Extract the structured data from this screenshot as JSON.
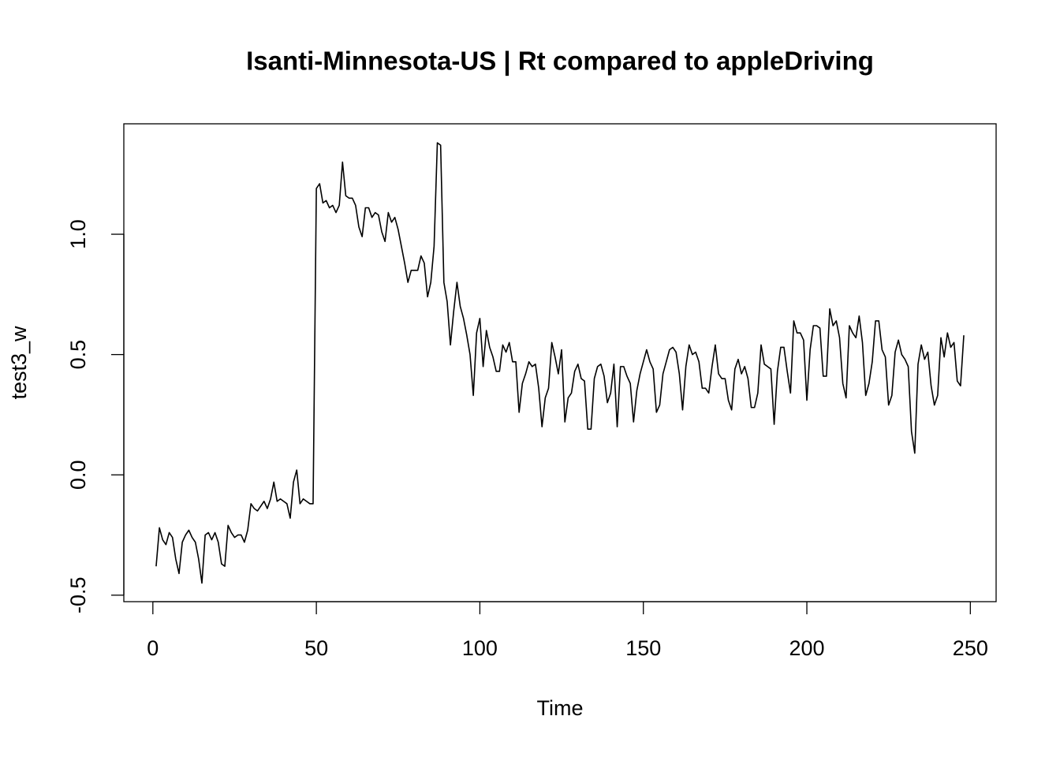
{
  "chart_data": {
    "type": "line",
    "title": "Isanti-Minnesota-US | Rt compared to appleDriving",
    "x_label": "Time",
    "y_label": "test3_w",
    "color": "#000000",
    "grid": false,
    "xlim": [
      -8.88,
      257.88
    ],
    "ylim": [
      -0.527,
      1.459
    ],
    "xticks": [
      0,
      50,
      100,
      150,
      200,
      250
    ],
    "yticks": [
      -0.5,
      {
        "value": 0,
        "label": "0.0"
      },
      0.5,
      {
        "value": 1,
        "label": "1.0"
      }
    ],
    "x": [
      1,
      2,
      3,
      4,
      5,
      6,
      7,
      8,
      9,
      10,
      11,
      12,
      13,
      14,
      15,
      16,
      17,
      18,
      19,
      20,
      21,
      22,
      23,
      24,
      25,
      26,
      27,
      28,
      29,
      30,
      31,
      32,
      33,
      34,
      35,
      36,
      37,
      38,
      39,
      40,
      41,
      42,
      43,
      44,
      45,
      46,
      47,
      48,
      49,
      50,
      51,
      52,
      53,
      54,
      55,
      56,
      57,
      58,
      59,
      60,
      61,
      62,
      63,
      64,
      65,
      66,
      67,
      68,
      69,
      70,
      71,
      72,
      73,
      74,
      75,
      76,
      77,
      78,
      79,
      80,
      81,
      82,
      83,
      84,
      85,
      86,
      87,
      88,
      89,
      90,
      91,
      92,
      93,
      94,
      95,
      96,
      97,
      98,
      99,
      100,
      101,
      102,
      103,
      104,
      105,
      106,
      107,
      108,
      109,
      110,
      111,
      112,
      113,
      114,
      115,
      116,
      117,
      118,
      119,
      120,
      121,
      122,
      123,
      124,
      125,
      126,
      127,
      128,
      129,
      130,
      131,
      132,
      133,
      134,
      135,
      136,
      137,
      138,
      139,
      140,
      141,
      142,
      143,
      144,
      145,
      146,
      147,
      148,
      149,
      150,
      151,
      152,
      153,
      154,
      155,
      156,
      157,
      158,
      159,
      160,
      161,
      162,
      163,
      164,
      165,
      166,
      167,
      168,
      169,
      170,
      171,
      172,
      173,
      174,
      175,
      176,
      177,
      178,
      179,
      180,
      181,
      182,
      183,
      184,
      185,
      186,
      187,
      188,
      189,
      190,
      191,
      192,
      193,
      194,
      195,
      196,
      197,
      198,
      199,
      200,
      201,
      202,
      203,
      204,
      205,
      206,
      207,
      208,
      209,
      210,
      211,
      212,
      213,
      214,
      215,
      216,
      217,
      218,
      219,
      220,
      221,
      222,
      223,
      224,
      225,
      226,
      227,
      228,
      229,
      230,
      231,
      232,
      233,
      234,
      235,
      236,
      237,
      238,
      239,
      240,
      241,
      242,
      243,
      244,
      245,
      246,
      247,
      248
    ],
    "values": [
      -0.38,
      -0.22,
      -0.27,
      -0.29,
      -0.24,
      -0.26,
      -0.35,
      -0.41,
      -0.28,
      -0.25,
      -0.23,
      -0.26,
      -0.28,
      -0.35,
      -0.45,
      -0.25,
      -0.24,
      -0.27,
      -0.24,
      -0.28,
      -0.37,
      -0.38,
      -0.21,
      -0.24,
      -0.26,
      -0.25,
      -0.25,
      -0.28,
      -0.23,
      -0.12,
      -0.14,
      -0.15,
      -0.13,
      -0.11,
      -0.14,
      -0.1,
      -0.03,
      -0.11,
      -0.1,
      -0.11,
      -0.12,
      -0.18,
      -0.03,
      0.02,
      -0.12,
      -0.1,
      -0.11,
      -0.12,
      -0.12,
      1.19,
      1.21,
      1.13,
      1.14,
      1.11,
      1.12,
      1.09,
      1.12,
      1.3,
      1.16,
      1.15,
      1.15,
      1.12,
      1.03,
      0.99,
      1.11,
      1.11,
      1.07,
      1.09,
      1.08,
      1.01,
      0.97,
      1.09,
      1.05,
      1.07,
      1.02,
      0.95,
      0.88,
      0.8,
      0.85,
      0.85,
      0.85,
      0.91,
      0.88,
      0.74,
      0.8,
      0.95,
      1.38,
      1.37,
      0.8,
      0.72,
      0.54,
      0.68,
      0.8,
      0.7,
      0.65,
      0.58,
      0.5,
      0.33,
      0.59,
      0.65,
      0.45,
      0.6,
      0.53,
      0.49,
      0.43,
      0.43,
      0.54,
      0.51,
      0.55,
      0.47,
      0.47,
      0.26,
      0.38,
      0.42,
      0.47,
      0.45,
      0.46,
      0.36,
      0.2,
      0.32,
      0.36,
      0.55,
      0.49,
      0.42,
      0.52,
      0.22,
      0.32,
      0.34,
      0.43,
      0.46,
      0.4,
      0.39,
      0.19,
      0.19,
      0.4,
      0.45,
      0.46,
      0.41,
      0.3,
      0.34,
      0.46,
      0.2,
      0.45,
      0.45,
      0.41,
      0.38,
      0.22,
      0.35,
      0.42,
      0.47,
      0.52,
      0.47,
      0.44,
      0.26,
      0.29,
      0.42,
      0.47,
      0.52,
      0.53,
      0.51,
      0.42,
      0.27,
      0.45,
      0.54,
      0.5,
      0.51,
      0.47,
      0.36,
      0.36,
      0.34,
      0.45,
      0.54,
      0.42,
      0.4,
      0.4,
      0.31,
      0.27,
      0.44,
      0.48,
      0.42,
      0.45,
      0.4,
      0.28,
      0.28,
      0.34,
      0.54,
      0.46,
      0.45,
      0.44,
      0.21,
      0.43,
      0.53,
      0.53,
      0.43,
      0.34,
      0.64,
      0.59,
      0.59,
      0.56,
      0.31,
      0.52,
      0.62,
      0.62,
      0.61,
      0.41,
      0.41,
      0.69,
      0.62,
      0.64,
      0.57,
      0.38,
      0.32,
      0.62,
      0.59,
      0.57,
      0.66,
      0.55,
      0.33,
      0.38,
      0.47,
      0.64,
      0.64,
      0.52,
      0.49,
      0.29,
      0.33,
      0.51,
      0.56,
      0.5,
      0.48,
      0.45,
      0.18,
      0.09,
      0.46,
      0.54,
      0.48,
      0.51,
      0.37,
      0.29,
      0.33,
      0.57,
      0.49,
      0.59,
      0.53,
      0.55,
      0.39,
      0.37,
      0.58
    ]
  }
}
